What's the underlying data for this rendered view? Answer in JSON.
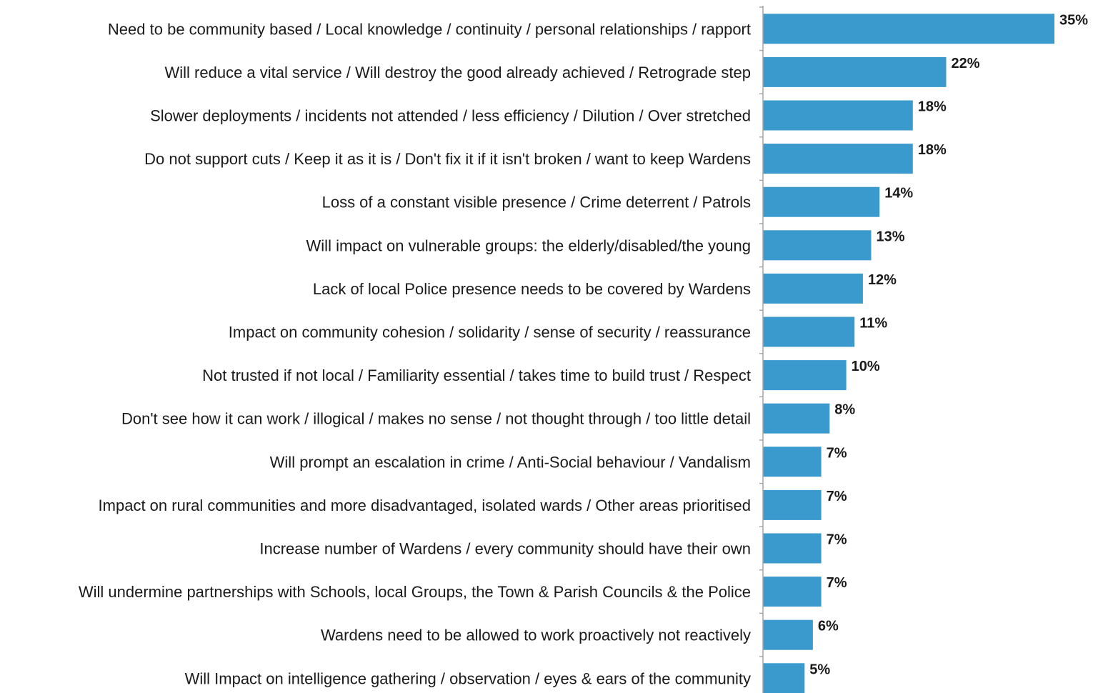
{
  "chart_data": {
    "type": "bar",
    "orientation": "horizontal",
    "categories": [
      "Need to be community based / Local knowledge / continuity / personal relationships / rapport",
      "Will reduce a vital service / Will destroy the good already achieved / Retrograde step",
      "Slower deployments / incidents not attended / less efficiency / Dilution / Over stretched",
      "Do not support cuts / Keep it as it is / Don't fix it if it isn't broken / want to keep Wardens",
      "Loss of a constant visible presence / Crime deterrent / Patrols",
      "Will impact on vulnerable groups:  the elderly/disabled/the young",
      "Lack of local Police presence needs to be covered by Wardens",
      "Impact on community cohesion / solidarity / sense of security / reassurance",
      "Not trusted if not local / Familiarity essential / takes time to build trust / Respect",
      "Don't see how it can work / illogical / makes no sense / not thought through / too little detail",
      "Will prompt an escalation in crime / Anti-Social behaviour / Vandalism",
      "Impact on rural communities and more disadvantaged, isolated wards / Other areas prioritised",
      "Increase number of Wardens / every community should have their own",
      "Will undermine partnerships with Schools, local Groups, the Town & Parish Councils & the Police",
      "Wardens need to be allowed to work proactively not reactively",
      "Will Impact on intelligence gathering / observation / eyes & ears of the community"
    ],
    "values": [
      35,
      22,
      18,
      18,
      14,
      13,
      12,
      11,
      10,
      8,
      7,
      7,
      7,
      7,
      6,
      5
    ],
    "value_labels": [
      "35%",
      "22%",
      "18%",
      "18%",
      "14%",
      "13%",
      "12%",
      "11%",
      "10%",
      "8%",
      "7%",
      "7%",
      "7%",
      "7%",
      "6%",
      "5%"
    ],
    "unit": "%",
    "xlim": [
      0,
      35
    ],
    "title": "",
    "xlabel": "",
    "ylabel": "",
    "grid": false,
    "legend": "none",
    "colors": {
      "bar": "#3b9acd",
      "axis": "#a6a6a6",
      "text": "#1a1a1a"
    }
  }
}
